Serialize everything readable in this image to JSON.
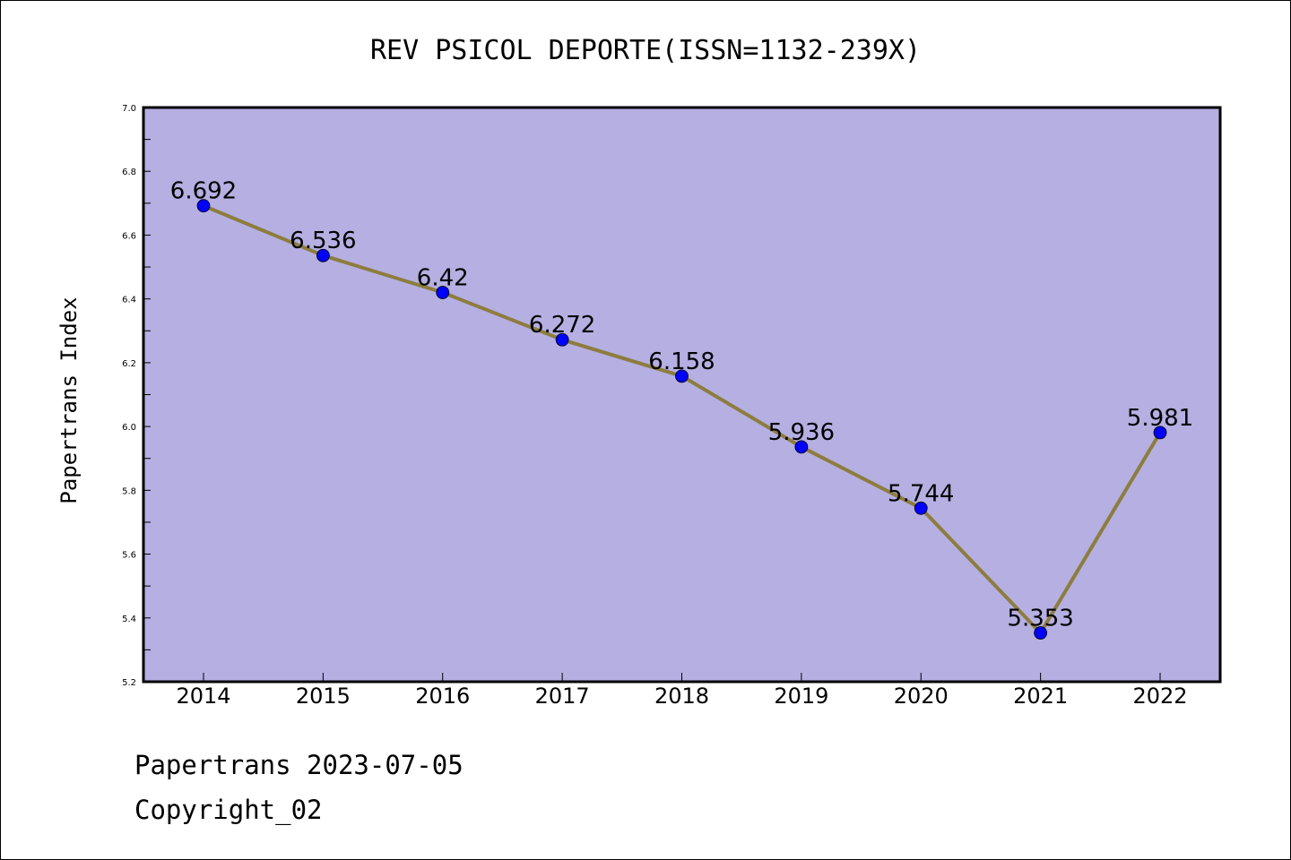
{
  "chart_data": {
    "type": "line",
    "title": "REV PSICOL DEPORTE(ISSN=1132-239X)",
    "xlabel": "",
    "ylabel": "Papertrans Index",
    "categories": [
      "2014",
      "2015",
      "2016",
      "2017",
      "2018",
      "2019",
      "2020",
      "2021",
      "2022"
    ],
    "values": [
      6.692,
      6.536,
      6.42,
      6.272,
      6.158,
      5.936,
      5.744,
      5.353,
      5.981
    ],
    "data_labels": [
      "6.692",
      "6.536",
      "6.42",
      "6.272",
      "6.158",
      "5.936",
      "5.744",
      "5.353",
      "5.981"
    ],
    "ylim": [
      5.2,
      7.0
    ],
    "yticks": [
      "5.2",
      "5.4",
      "5.6",
      "5.8",
      "6.0",
      "6.2",
      "6.4",
      "6.6",
      "6.8",
      "7.0"
    ],
    "grid": false,
    "legend": "none",
    "colors": {
      "plot_background": "#b5afe2",
      "line": "#8c7d3e",
      "marker": "#0000ff"
    }
  },
  "footer": {
    "line1": "Papertrans 2023-07-05",
    "line2": "Copyright_02"
  }
}
